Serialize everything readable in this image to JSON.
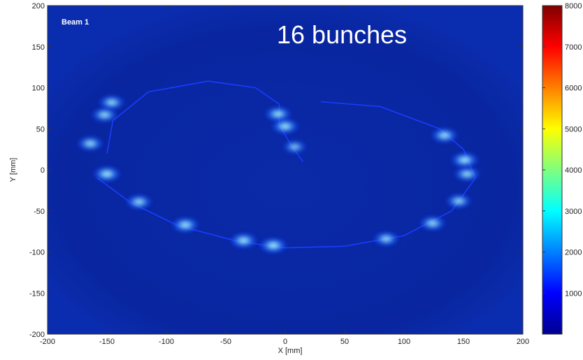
{
  "chart_data": {
    "type": "heatmap",
    "title": "16 bunches",
    "panel_label": "Beam 1",
    "xlabel": "X [mm]",
    "ylabel": "Y [mm]",
    "xlim": [
      -200,
      200
    ],
    "ylim": [
      -200,
      200
    ],
    "x_ticks": [
      -200,
      -150,
      -100,
      -50,
      0,
      50,
      100,
      150,
      200
    ],
    "y_ticks": [
      -200,
      -150,
      -100,
      -50,
      0,
      50,
      100,
      150,
      200
    ],
    "colorbar": {
      "range": [
        0,
        8000
      ],
      "ticks": [
        1000,
        2000,
        3000,
        4000,
        5000,
        6000,
        7000,
        8000
      ],
      "colormap": "jet"
    },
    "spots": [
      {
        "x": -146,
        "y": 82,
        "intensity": 0.6
      },
      {
        "x": -152,
        "y": 67,
        "intensity": 0.6
      },
      {
        "x": -164,
        "y": 32,
        "intensity": 0.6
      },
      {
        "x": -150,
        "y": -5,
        "intensity": 0.75
      },
      {
        "x": -123,
        "y": -39,
        "intensity": 0.6
      },
      {
        "x": -84,
        "y": -67,
        "intensity": 0.7
      },
      {
        "x": -35,
        "y": -86,
        "intensity": 0.7
      },
      {
        "x": -10,
        "y": -92,
        "intensity": 0.75
      },
      {
        "x": -6,
        "y": 68,
        "intensity": 0.65
      },
      {
        "x": 0,
        "y": 53,
        "intensity": 0.7
      },
      {
        "x": 8,
        "y": 28,
        "intensity": 0.35
      },
      {
        "x": 85,
        "y": -84,
        "intensity": 0.55
      },
      {
        "x": 124,
        "y": -65,
        "intensity": 0.6
      },
      {
        "x": 146,
        "y": -38,
        "intensity": 0.55
      },
      {
        "x": 153,
        "y": -5,
        "intensity": 0.6
      },
      {
        "x": 151,
        "y": 12,
        "intensity": 0.75
      },
      {
        "x": 134,
        "y": 42,
        "intensity": 0.65
      }
    ],
    "beam_path": [
      [
        -150,
        20
      ],
      [
        -145,
        60
      ],
      [
        -115,
        95
      ],
      [
        -65,
        108
      ],
      [
        -25,
        100
      ],
      [
        -5,
        80
      ],
      [
        -5,
        55
      ],
      [
        5,
        30
      ],
      [
        15,
        10
      ]
    ],
    "beam_path_2": [
      [
        -158,
        -10
      ],
      [
        -130,
        -40
      ],
      [
        -90,
        -68
      ],
      [
        -40,
        -87
      ],
      [
        0,
        -95
      ],
      [
        50,
        -93
      ],
      [
        100,
        -80
      ],
      [
        140,
        -50
      ],
      [
        160,
        -10
      ],
      [
        150,
        25
      ],
      [
        130,
        50
      ],
      [
        80,
        77
      ],
      [
        30,
        83
      ]
    ]
  }
}
